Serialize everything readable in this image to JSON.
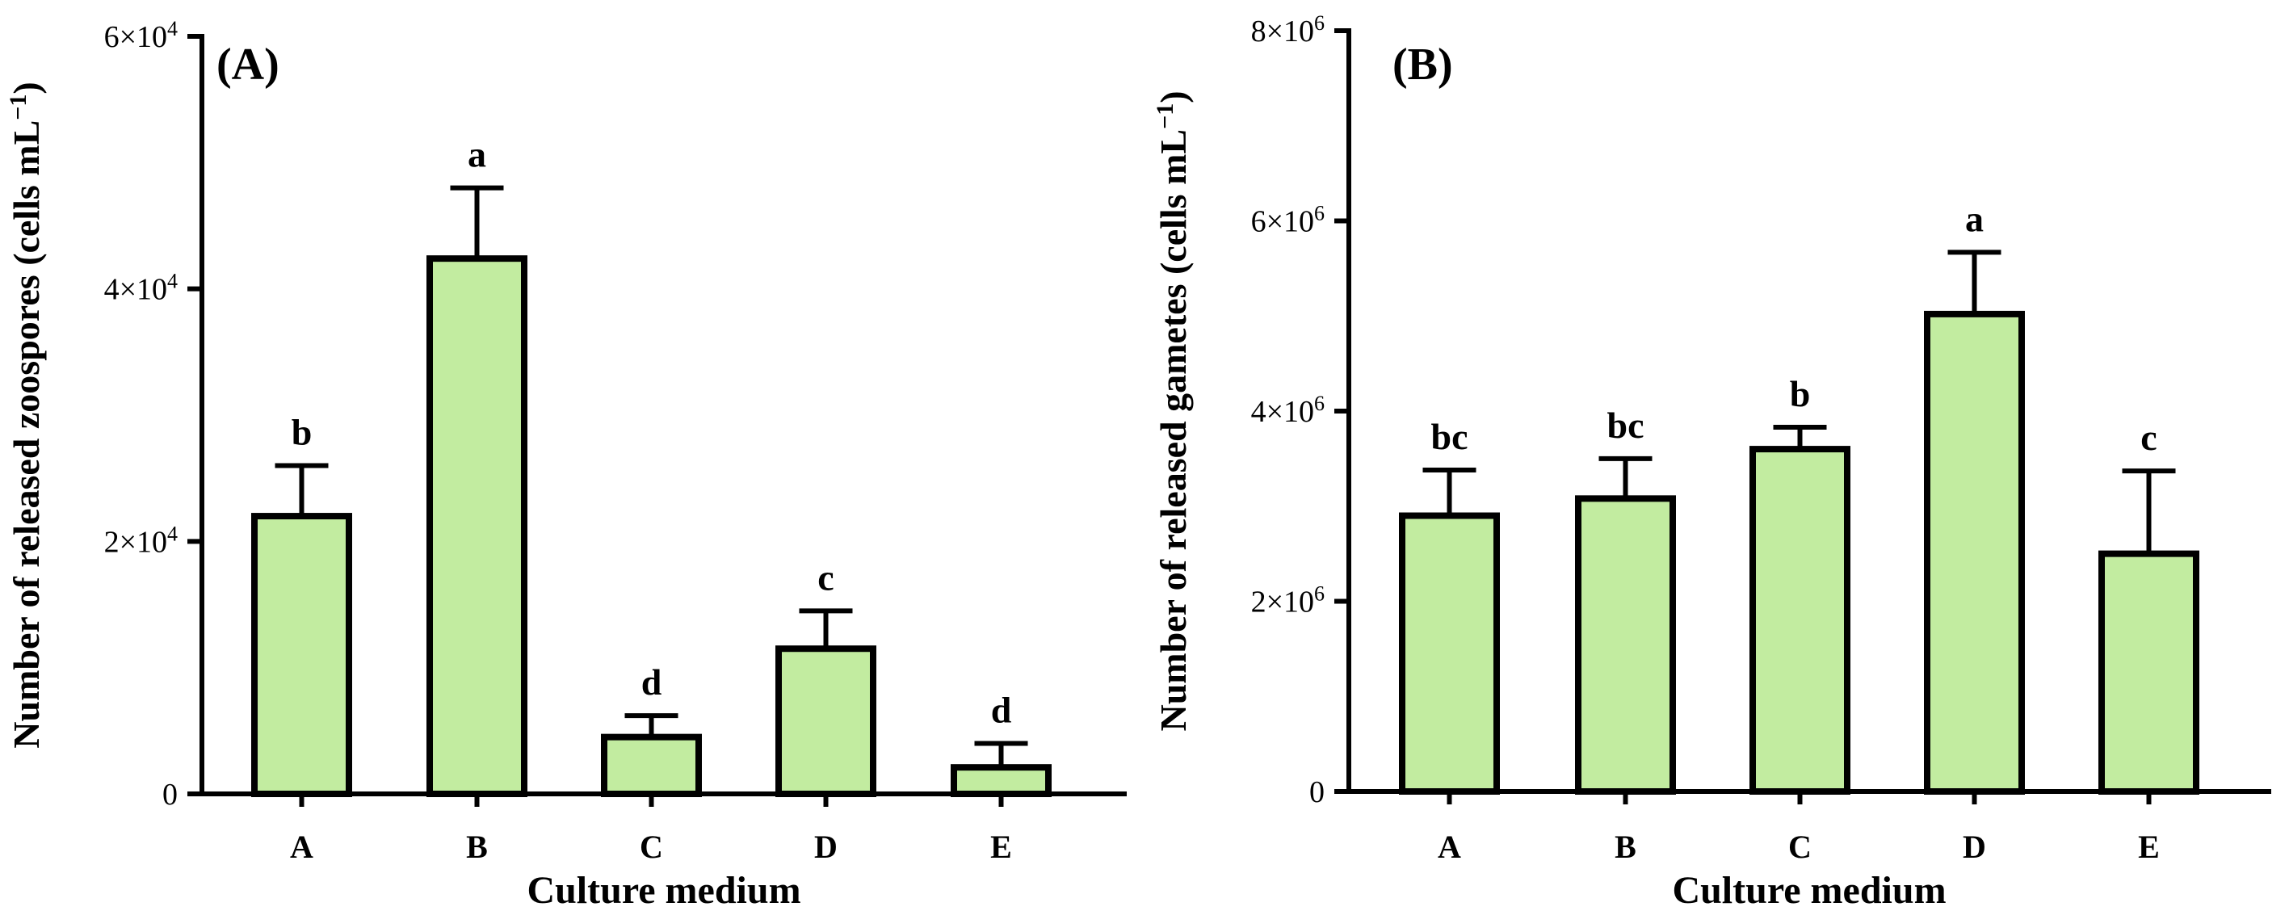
{
  "chart_data": [
    {
      "type": "bar",
      "panel_label": "(A)",
      "title": "",
      "xlabel": "Culture medium",
      "ylabel_main": "Number of released zoospores (cells mL",
      "ylabel_sup": "−1",
      "ylabel_end": ")",
      "ylim": [
        0,
        60000
      ],
      "yticks": [
        {
          "value": 0,
          "mantissa": "0",
          "exp": ""
        },
        {
          "value": 20000,
          "mantissa": "2×10",
          "exp": "4"
        },
        {
          "value": 40000,
          "mantissa": "4×10",
          "exp": "4"
        },
        {
          "value": 60000,
          "mantissa": "6×10",
          "exp": "4"
        }
      ],
      "categories": [
        "A",
        "B",
        "C",
        "D",
        "E"
      ],
      "values": [
        22000,
        42400,
        4500,
        11500,
        2100
      ],
      "errors": [
        4000,
        5600,
        1700,
        3000,
        1900
      ],
      "significance": [
        "b",
        "a",
        "d",
        "c",
        "d"
      ],
      "bar_color": "#c2eca0"
    },
    {
      "type": "bar",
      "panel_label": "(B)",
      "title": "",
      "xlabel": "Culture medium",
      "ylabel_main": "Number of released gametes (cells mL",
      "ylabel_sup": "−1",
      "ylabel_end": ")",
      "ylim": [
        0,
        8000000
      ],
      "yticks": [
        {
          "value": 0,
          "mantissa": "0",
          "exp": ""
        },
        {
          "value": 2000000,
          "mantissa": "2×10",
          "exp": "6"
        },
        {
          "value": 4000000,
          "mantissa": "4×10",
          "exp": "6"
        },
        {
          "value": 6000000,
          "mantissa": "6×10",
          "exp": "6"
        },
        {
          "value": 8000000,
          "mantissa": "8×10",
          "exp": "6"
        }
      ],
      "categories": [
        "A",
        "B",
        "C",
        "D",
        "E"
      ],
      "values": [
        2900000,
        3080000,
        3600000,
        5020000,
        2500000
      ],
      "errors": [
        480000,
        420000,
        230000,
        650000,
        870000
      ],
      "significance": [
        "bc",
        "bc",
        "b",
        "a",
        "c"
      ],
      "bar_color": "#c2eca0"
    }
  ]
}
